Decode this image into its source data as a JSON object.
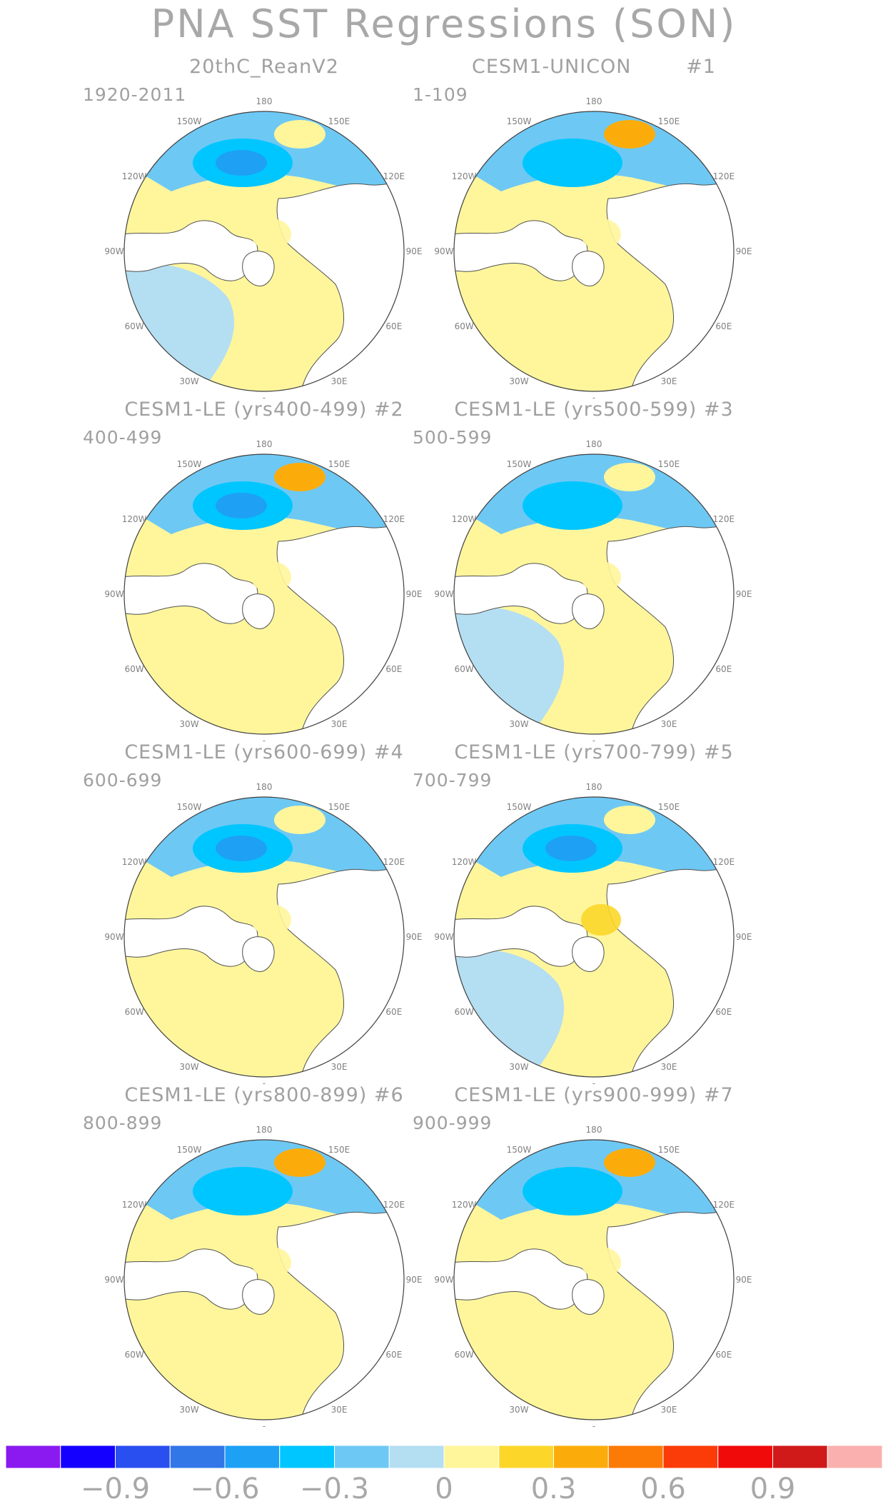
{
  "title": "PNA SST Regressions (SON)",
  "chart_data": {
    "type": "heatmap",
    "title": "PNA SST Regressions (SON)",
    "projection": "north polar stereographic",
    "panels": [
      {
        "title": "20thC_ReanV2",
        "years": "1920-2011",
        "pacific_center": -0.5,
        "north_pacific_east": 0.0,
        "north_atlantic": -0.15,
        "arctic": 0.1
      },
      {
        "title": "CESM1-UNICON        #1",
        "years": "1-109",
        "pacific_center": -0.4,
        "north_pacific_east": 0.4,
        "north_atlantic": 0.1,
        "arctic": 0.1
      },
      {
        "title": "CESM1-LE (yrs400-499) #2",
        "years": "400-499",
        "pacific_center": -0.6,
        "north_pacific_east": 0.4,
        "north_atlantic": 0.05,
        "arctic": 0.05
      },
      {
        "title": "CESM1-LE (yrs500-599) #3",
        "years": "500-599",
        "pacific_center": -0.4,
        "north_pacific_east": 0.1,
        "north_atlantic": -0.1,
        "arctic": 0.1
      },
      {
        "title": "CESM1-LE (yrs600-699) #4",
        "years": "600-699",
        "pacific_center": -0.6,
        "north_pacific_east": 0.1,
        "north_atlantic": 0.05,
        "arctic": 0.1
      },
      {
        "title": "CESM1-LE (yrs700-799) #5",
        "years": "700-799",
        "pacific_center": -0.6,
        "north_pacific_east": 0.1,
        "north_atlantic": -0.1,
        "arctic": 0.2
      },
      {
        "title": "CESM1-LE (yrs800-899) #6",
        "years": "800-899",
        "pacific_center": -0.4,
        "north_pacific_east": 0.4,
        "north_atlantic": 0.1,
        "arctic": 0.05
      },
      {
        "title": "CESM1-LE (yrs900-999) #7",
        "years": "900-999",
        "pacific_center": -0.4,
        "north_pacific_east": 0.4,
        "north_atlantic": 0.1,
        "arctic": 0.05
      }
    ],
    "longitude_labels": [
      "180",
      "150E",
      "120E",
      "90E",
      "60E",
      "30E",
      "0",
      "30W",
      "60W",
      "90W",
      "120W",
      "150W"
    ],
    "colorbar": {
      "levels": [
        -1.05,
        -0.9,
        -0.75,
        -0.6,
        -0.45,
        -0.3,
        -0.15,
        0,
        0.15,
        0.3,
        0.45,
        0.6,
        0.75,
        0.9,
        1.05
      ],
      "colors": [
        "#8a1aef",
        "#1400ff",
        "#2a4ff0",
        "#3277e8",
        "#1ea0f5",
        "#00c6ff",
        "#6ec8f4",
        "#b4def2",
        "#fff69c",
        "#fcd72a",
        "#fcac0a",
        "#fc7a06",
        "#fb3c08",
        "#f00a0a",
        "#d01a1a",
        "#fbb0b0"
      ],
      "tick_labels": [
        "−0.9",
        "−0.6",
        "−0.3",
        "0",
        "0.3",
        "0.6",
        "0.9"
      ],
      "tick_values": [
        -0.9,
        -0.6,
        -0.3,
        0,
        0.3,
        0.6,
        0.9
      ]
    }
  }
}
